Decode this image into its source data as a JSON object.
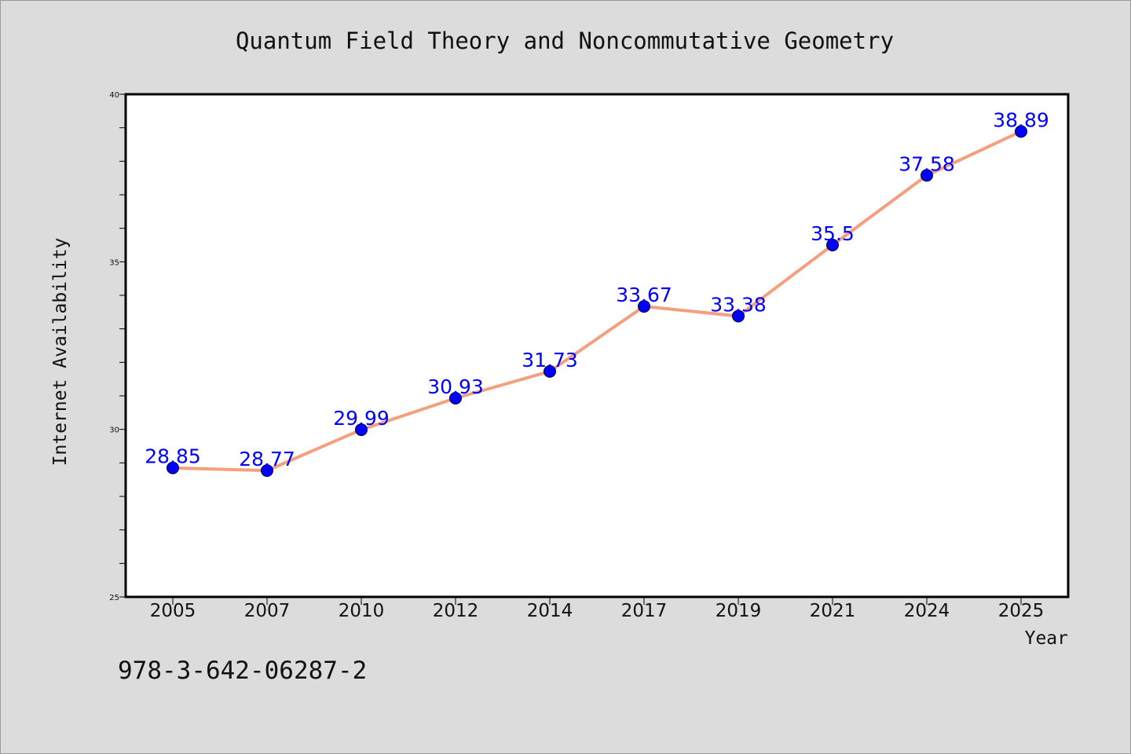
{
  "chart_data": {
    "type": "line",
    "title": "Quantum Field Theory and Noncommutative Geometry",
    "xlabel": "Year",
    "ylabel": "Internet Availability",
    "categories": [
      "2005",
      "2007",
      "2010",
      "2012",
      "2014",
      "2017",
      "2019",
      "2021",
      "2024",
      "2025"
    ],
    "series": [
      {
        "values": [
          28.85,
          28.77,
          29.99,
          30.93,
          31.73,
          33.67,
          33.38,
          35.5,
          37.58,
          38.89
        ]
      }
    ],
    "data_labels": [
      "28.85",
      "28.77",
      "29.99",
      "30.93",
      "31.73",
      "33.67",
      "33.38",
      "35.5",
      "37.58",
      "38.89"
    ],
    "ylim": [
      25,
      40
    ],
    "yticks": [
      "25",
      "30",
      "35",
      "40"
    ],
    "line_color": "#f4a07f",
    "marker_color": "#0000ff",
    "label_color": "#0000ff",
    "grid": false
  },
  "footnote": "978-3-642-06287-2"
}
